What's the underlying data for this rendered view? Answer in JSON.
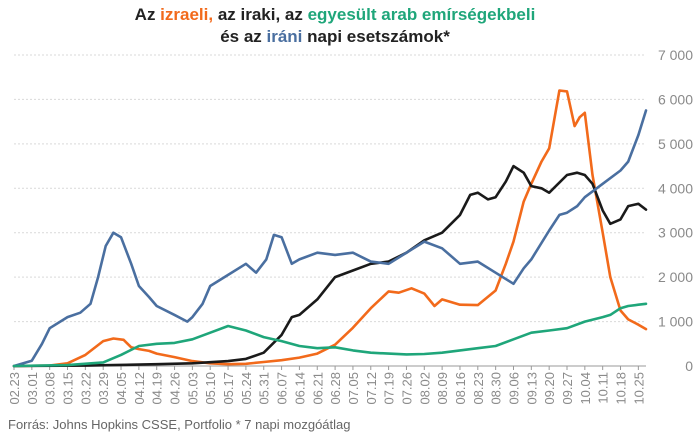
{
  "title": {
    "line1_a": "Az ",
    "line1_israel": "izraeli,",
    "line1_b": " az iraki, az ",
    "line1_uae": "egyesült arab emírségekbeli",
    "line2_a": "és az ",
    "line2_iran": "iráni",
    "line2_b": " napi esetszámok*"
  },
  "source": "Forrás: Johns Hopkins CSSE, Portfolio   * 7 napi mozgóátlag",
  "chart_data": {
    "type": "line",
    "ylim": [
      0,
      7000
    ],
    "yticks": [
      0,
      1000,
      2000,
      3000,
      4000,
      5000,
      6000,
      7000
    ],
    "ytick_labels": [
      "0",
      "1 000",
      "2 000",
      "3 000",
      "4 000",
      "5 000",
      "6 000",
      "7 000"
    ],
    "grid": true,
    "x_start": "2020-02-23",
    "x_end": "2020-10-28",
    "xtick_labels": [
      "02.23",
      "03.01",
      "03.08",
      "03.15",
      "03.22",
      "03.29",
      "04.05",
      "04.12",
      "04.19",
      "04.26",
      "05.03",
      "05.10",
      "05.17",
      "05.24",
      "05.31",
      "06.07",
      "06.14",
      "06.21",
      "06.28",
      "07.05",
      "07.12",
      "07.19",
      "07.26",
      "08.02",
      "08.09",
      "08.16",
      "08.23",
      "08.30",
      "09.06",
      "09.13",
      "09.20",
      "09.27",
      "10.04",
      "10.11",
      "10.18",
      "10.25"
    ],
    "series": [
      {
        "color": "#f26a1b",
        "width": 2.6,
        "points": [
          [
            "02.23",
            0
          ],
          [
            "03.08",
            10
          ],
          [
            "03.15",
            60
          ],
          [
            "03.22",
            250
          ],
          [
            "03.29",
            560
          ],
          [
            "04.02",
            620
          ],
          [
            "04.06",
            590
          ],
          [
            "04.09",
            420
          ],
          [
            "04.12",
            380
          ],
          [
            "04.16",
            340
          ],
          [
            "04.19",
            280
          ],
          [
            "04.26",
            200
          ],
          [
            "05.03",
            110
          ],
          [
            "05.10",
            60
          ],
          [
            "05.17",
            40
          ],
          [
            "05.24",
            50
          ],
          [
            "05.31",
            90
          ],
          [
            "06.07",
            130
          ],
          [
            "06.14",
            190
          ],
          [
            "06.21",
            280
          ],
          [
            "06.28",
            480
          ],
          [
            "07.05",
            860
          ],
          [
            "07.12",
            1300
          ],
          [
            "07.19",
            1680
          ],
          [
            "07.23",
            1650
          ],
          [
            "07.28",
            1750
          ],
          [
            "08.02",
            1630
          ],
          [
            "08.06",
            1350
          ],
          [
            "08.09",
            1500
          ],
          [
            "08.16",
            1380
          ],
          [
            "08.23",
            1370
          ],
          [
            "08.30",
            1700
          ],
          [
            "09.03",
            2300
          ],
          [
            "09.06",
            2800
          ],
          [
            "09.10",
            3700
          ],
          [
            "09.13",
            4100
          ],
          [
            "09.17",
            4600
          ],
          [
            "09.20",
            4900
          ],
          [
            "09.24",
            6200
          ],
          [
            "09.27",
            6180
          ],
          [
            "09.30",
            5400
          ],
          [
            "10.02",
            5600
          ],
          [
            "10.04",
            5700
          ],
          [
            "10.07",
            4300
          ],
          [
            "10.11",
            3000
          ],
          [
            "10.14",
            2000
          ],
          [
            "10.18",
            1250
          ],
          [
            "10.21",
            1050
          ],
          [
            "10.25",
            930
          ],
          [
            "10.28",
            830
          ]
        ]
      },
      {
        "color": "#1a1a1a",
        "width": 2.6,
        "points": [
          [
            "02.23",
            0
          ],
          [
            "03.22",
            10
          ],
          [
            "04.19",
            40
          ],
          [
            "05.03",
            60
          ],
          [
            "05.17",
            110
          ],
          [
            "05.24",
            160
          ],
          [
            "05.31",
            300
          ],
          [
            "06.07",
            700
          ],
          [
            "06.11",
            1100
          ],
          [
            "06.14",
            1150
          ],
          [
            "06.21",
            1500
          ],
          [
            "06.28",
            2000
          ],
          [
            "07.05",
            2150
          ],
          [
            "07.12",
            2300
          ],
          [
            "07.19",
            2350
          ],
          [
            "07.26",
            2550
          ],
          [
            "08.02",
            2830
          ],
          [
            "08.09",
            3000
          ],
          [
            "08.16",
            3400
          ],
          [
            "08.20",
            3850
          ],
          [
            "08.23",
            3900
          ],
          [
            "08.27",
            3750
          ],
          [
            "08.30",
            3800
          ],
          [
            "09.03",
            4150
          ],
          [
            "09.06",
            4500
          ],
          [
            "09.10",
            4350
          ],
          [
            "09.13",
            4050
          ],
          [
            "09.17",
            4000
          ],
          [
            "09.20",
            3900
          ],
          [
            "09.27",
            4300
          ],
          [
            "10.01",
            4350
          ],
          [
            "10.04",
            4300
          ],
          [
            "10.07",
            4100
          ],
          [
            "10.11",
            3500
          ],
          [
            "10.14",
            3200
          ],
          [
            "10.18",
            3300
          ],
          [
            "10.21",
            3600
          ],
          [
            "10.25",
            3650
          ],
          [
            "10.28",
            3520
          ]
        ]
      },
      {
        "color": "#4a6fa0",
        "width": 2.6,
        "points": [
          [
            "02.23",
            0
          ],
          [
            "03.01",
            120
          ],
          [
            "03.05",
            500
          ],
          [
            "03.08",
            850
          ],
          [
            "03.15",
            1100
          ],
          [
            "03.20",
            1200
          ],
          [
            "03.24",
            1400
          ],
          [
            "03.27",
            2000
          ],
          [
            "03.30",
            2700
          ],
          [
            "04.02",
            3000
          ],
          [
            "04.05",
            2900
          ],
          [
            "04.09",
            2300
          ],
          [
            "04.12",
            1800
          ],
          [
            "04.16",
            1550
          ],
          [
            "04.19",
            1350
          ],
          [
            "04.26",
            1150
          ],
          [
            "05.01",
            1000
          ],
          [
            "05.03",
            1100
          ],
          [
            "05.07",
            1400
          ],
          [
            "05.10",
            1800
          ],
          [
            "05.17",
            2050
          ],
          [
            "05.24",
            2300
          ],
          [
            "05.28",
            2100
          ],
          [
            "06.01",
            2400
          ],
          [
            "06.04",
            2950
          ],
          [
            "06.07",
            2900
          ],
          [
            "06.11",
            2300
          ],
          [
            "06.14",
            2400
          ],
          [
            "06.21",
            2550
          ],
          [
            "06.28",
            2500
          ],
          [
            "07.05",
            2550
          ],
          [
            "07.12",
            2350
          ],
          [
            "07.19",
            2300
          ],
          [
            "07.26",
            2550
          ],
          [
            "08.02",
            2800
          ],
          [
            "08.09",
            2650
          ],
          [
            "08.16",
            2300
          ],
          [
            "08.23",
            2350
          ],
          [
            "08.30",
            2100
          ],
          [
            "09.06",
            1850
          ],
          [
            "09.10",
            2200
          ],
          [
            "09.13",
            2400
          ],
          [
            "09.20",
            3050
          ],
          [
            "09.24",
            3400
          ],
          [
            "09.27",
            3450
          ],
          [
            "10.01",
            3600
          ],
          [
            "10.04",
            3800
          ],
          [
            "10.11",
            4100
          ],
          [
            "10.18",
            4400
          ],
          [
            "10.21",
            4600
          ],
          [
            "10.25",
            5200
          ],
          [
            "10.28",
            5750
          ]
        ]
      },
      {
        "color": "#1fa67a",
        "width": 2.6,
        "points": [
          [
            "02.23",
            0
          ],
          [
            "03.15",
            20
          ],
          [
            "03.29",
            80
          ],
          [
            "04.05",
            250
          ],
          [
            "04.12",
            450
          ],
          [
            "04.19",
            500
          ],
          [
            "04.26",
            520
          ],
          [
            "05.03",
            600
          ],
          [
            "05.10",
            750
          ],
          [
            "05.17",
            900
          ],
          [
            "05.24",
            800
          ],
          [
            "05.31",
            650
          ],
          [
            "06.07",
            560
          ],
          [
            "06.14",
            450
          ],
          [
            "06.21",
            400
          ],
          [
            "06.28",
            420
          ],
          [
            "07.05",
            350
          ],
          [
            "07.12",
            300
          ],
          [
            "07.19",
            280
          ],
          [
            "07.26",
            260
          ],
          [
            "08.02",
            270
          ],
          [
            "08.09",
            300
          ],
          [
            "08.16",
            350
          ],
          [
            "08.23",
            400
          ],
          [
            "08.30",
            450
          ],
          [
            "09.06",
            600
          ],
          [
            "09.13",
            750
          ],
          [
            "09.20",
            800
          ],
          [
            "09.27",
            850
          ],
          [
            "10.04",
            1000
          ],
          [
            "10.11",
            1100
          ],
          [
            "10.14",
            1150
          ],
          [
            "10.18",
            1300
          ],
          [
            "10.21",
            1350
          ],
          [
            "10.25",
            1380
          ],
          [
            "10.28",
            1400
          ]
        ]
      }
    ]
  }
}
